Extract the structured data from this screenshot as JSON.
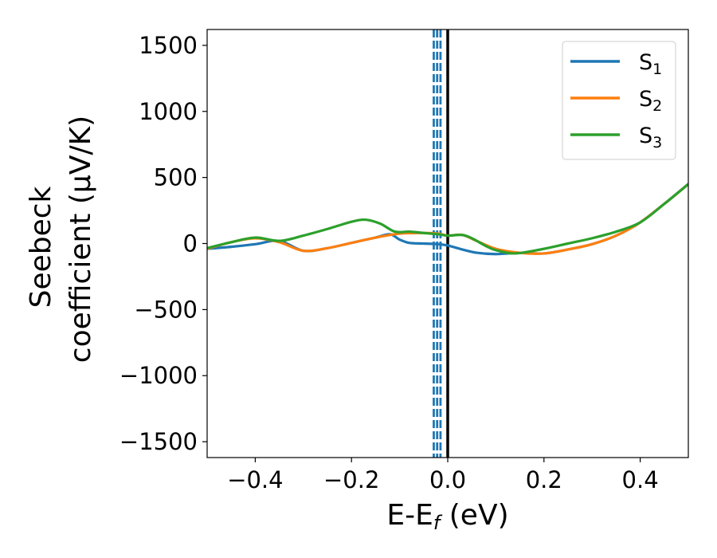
{
  "chart_data": {
    "type": "line",
    "xlabel": "E-E",
    "xlabel_sub": "f",
    "xlabel_unit": " (eV)",
    "ylabel_line1": "Seebeck",
    "ylabel_line2": "coefficient  (μV/K)",
    "xlim": [
      -0.5,
      0.5
    ],
    "ylim": [
      -1620,
      1620
    ],
    "x_ticks": [
      -0.4,
      -0.2,
      0.0,
      0.2,
      0.4
    ],
    "x_tick_labels": [
      "−0.4",
      "−0.2",
      "0.0",
      "0.2",
      "0.4"
    ],
    "y_ticks": [
      -1500,
      -1000,
      -500,
      0,
      500,
      1000,
      1500
    ],
    "y_tick_labels": [
      "−1500",
      "−1000",
      "−500",
      "0",
      "500",
      "1000",
      "1500"
    ],
    "grid": false,
    "legend_position": "top-right",
    "vertical_lines": [
      {
        "x": 0.0,
        "style": "solid",
        "color": "#000000"
      },
      {
        "x": -0.029,
        "style": "dashed",
        "color": "#1f77b4"
      },
      {
        "x": -0.022,
        "style": "dashed",
        "color": "#1f77b4"
      },
      {
        "x": -0.015,
        "style": "dashed",
        "color": "#1f77b4"
      }
    ],
    "series": [
      {
        "name": "S",
        "name_sub": "1",
        "color": "#1f77b4",
        "points": [
          [
            -0.5,
            -40
          ],
          [
            -0.45,
            -25
          ],
          [
            -0.4,
            -5
          ],
          [
            -0.35,
            20
          ],
          [
            -0.3,
            -55
          ],
          [
            -0.25,
            -35
          ],
          [
            -0.2,
            5
          ],
          [
            -0.15,
            45
          ],
          [
            -0.12,
            70
          ],
          [
            -0.1,
            30
          ],
          [
            -0.08,
            5
          ],
          [
            -0.05,
            0
          ],
          [
            -0.02,
            -5
          ],
          [
            0.0,
            -15
          ],
          [
            0.03,
            -45
          ],
          [
            0.06,
            -70
          ],
          [
            0.1,
            -80
          ],
          [
            0.15,
            -70
          ],
          [
            0.2,
            -75
          ],
          [
            0.25,
            -45
          ],
          [
            0.3,
            -5
          ],
          [
            0.35,
            60
          ],
          [
            0.4,
            160
          ],
          [
            0.45,
            300
          ],
          [
            0.5,
            450
          ]
        ]
      },
      {
        "name": "S",
        "name_sub": "2",
        "color": "#ff7f0e",
        "points": [
          [
            -0.5,
            -40
          ],
          [
            -0.45,
            10
          ],
          [
            -0.4,
            40
          ],
          [
            -0.35,
            10
          ],
          [
            -0.3,
            -55
          ],
          [
            -0.25,
            -35
          ],
          [
            -0.2,
            5
          ],
          [
            -0.15,
            45
          ],
          [
            -0.1,
            75
          ],
          [
            -0.05,
            80
          ],
          [
            -0.02,
            75
          ],
          [
            0.0,
            60
          ],
          [
            0.03,
            65
          ],
          [
            0.06,
            20
          ],
          [
            0.1,
            -40
          ],
          [
            0.15,
            -70
          ],
          [
            0.2,
            -75
          ],
          [
            0.25,
            -45
          ],
          [
            0.3,
            -5
          ],
          [
            0.35,
            60
          ],
          [
            0.4,
            160
          ],
          [
            0.45,
            300
          ],
          [
            0.5,
            450
          ]
        ]
      },
      {
        "name": "S",
        "name_sub": "3",
        "color": "#2ca02c",
        "points": [
          [
            -0.5,
            -35
          ],
          [
            -0.45,
            10
          ],
          [
            -0.4,
            45
          ],
          [
            -0.35,
            20
          ],
          [
            -0.3,
            60
          ],
          [
            -0.25,
            110
          ],
          [
            -0.2,
            165
          ],
          [
            -0.17,
            180
          ],
          [
            -0.14,
            150
          ],
          [
            -0.11,
            90
          ],
          [
            -0.08,
            90
          ],
          [
            -0.05,
            80
          ],
          [
            -0.02,
            70
          ],
          [
            0.0,
            60
          ],
          [
            0.03,
            65
          ],
          [
            0.05,
            40
          ],
          [
            0.08,
            -20
          ],
          [
            0.1,
            -50
          ],
          [
            0.14,
            -75
          ],
          [
            0.2,
            -40
          ],
          [
            0.25,
            0
          ],
          [
            0.3,
            40
          ],
          [
            0.35,
            90
          ],
          [
            0.4,
            160
          ],
          [
            0.45,
            300
          ],
          [
            0.5,
            450
          ]
        ]
      }
    ]
  }
}
